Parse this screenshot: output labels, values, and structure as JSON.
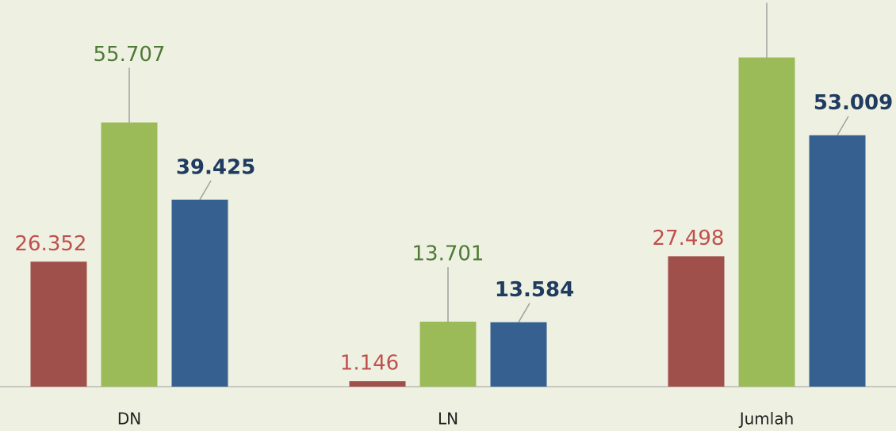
{
  "chart_data": {
    "type": "bar",
    "categories": [
      "DN",
      "LN",
      "Jumlah"
    ],
    "series": [
      {
        "color": "#a0504b",
        "label_color": "#c0504d",
        "label_bold": false,
        "values": [
          26.352,
          1.146,
          27.498
        ]
      },
      {
        "color": "#9bbb59",
        "label_color": "#4e7a36",
        "label_bold": false,
        "values": [
          55.707,
          13.701,
          69.408
        ]
      },
      {
        "color": "#36608f",
        "label_color": "#1f3b60",
        "label_bold": true,
        "values": [
          39.425,
          13.584,
          53.009
        ]
      }
    ],
    "ylim": [
      0,
      70
    ]
  }
}
